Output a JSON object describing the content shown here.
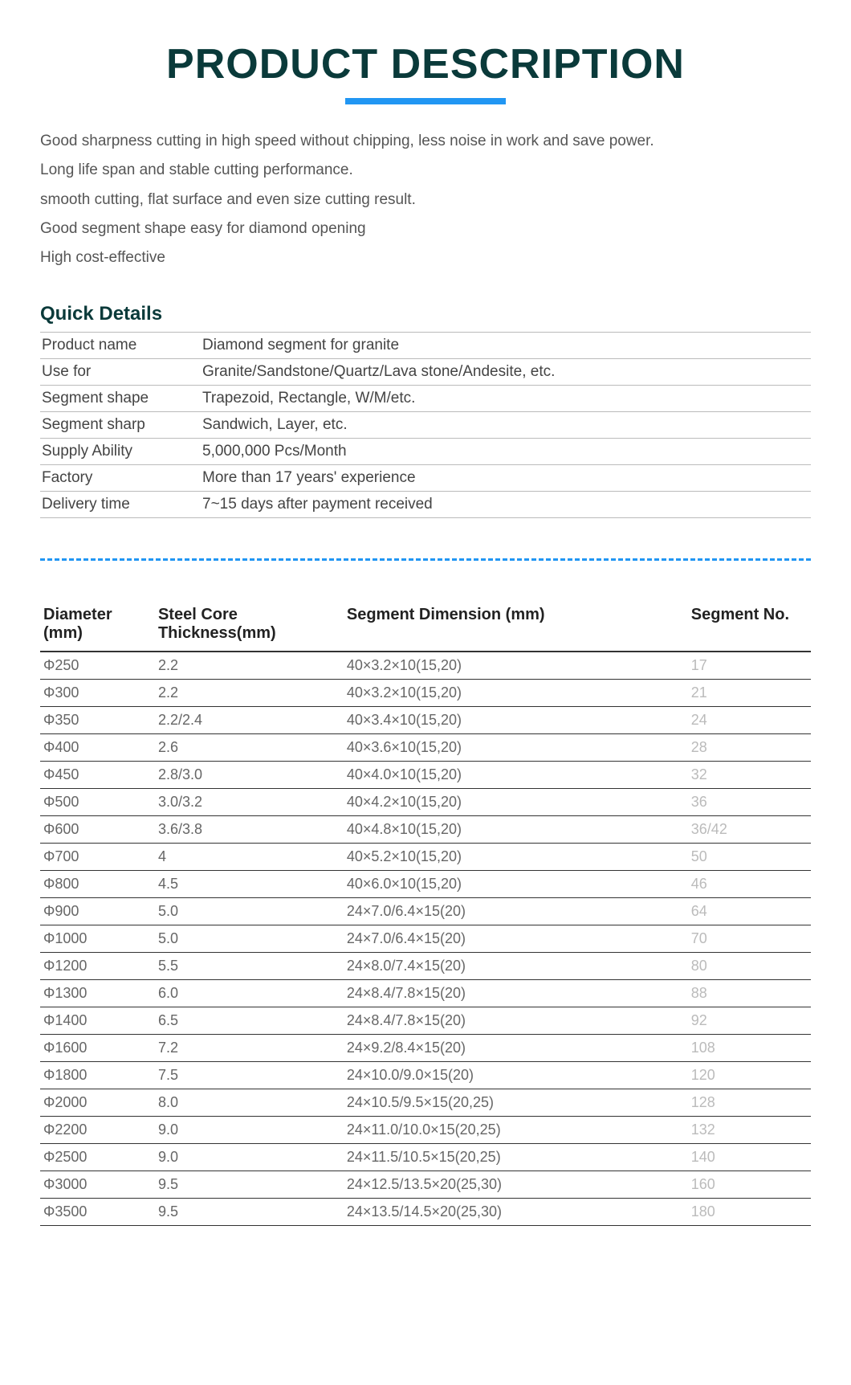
{
  "title": "PRODUCT DESCRIPTION",
  "features": [
    "Good sharpness cutting in high speed without chipping, less noise in work and save power.",
    "Long life span and stable cutting performance.",
    "smooth cutting, flat surface and even size cutting result.",
    "Good segment shape easy for diamond opening",
    "High cost-effective"
  ],
  "quick_details_heading": "Quick Details",
  "quick_details": [
    {
      "key": "Product name",
      "value": "Diamond segment for granite"
    },
    {
      "key": "Use for",
      "value": "Granite/Sandstone/Quartz/Lava stone/Andesite, etc."
    },
    {
      "key": "Segment shape",
      "value": "Trapezoid, Rectangle, W/M/etc."
    },
    {
      "key": "Segment sharp",
      "value": "Sandwich, Layer, etc."
    },
    {
      "key": "Supply Ability",
      "value": "5,000,000 Pcs/Month"
    },
    {
      "key": "Factory",
      "value": "More than 17 years' experience"
    },
    {
      "key": "Delivery time",
      "value": "7~15 days after payment received"
    }
  ],
  "spec_headers": {
    "diameter": "Diameter (mm)",
    "core": "Steel Core Thickness(mm)",
    "dimension": "Segment Dimension  (mm)",
    "segno": "Segment No."
  },
  "spec_rows": [
    {
      "dia": "Φ250",
      "core": "2.2",
      "dim": "40×3.2×10(15,20)",
      "no": "17"
    },
    {
      "dia": "Φ300",
      "core": "2.2",
      "dim": "40×3.2×10(15,20)",
      "no": "21"
    },
    {
      "dia": "Φ350",
      "core": "2.2/2.4",
      "dim": "40×3.4×10(15,20)",
      "no": "24"
    },
    {
      "dia": "Φ400",
      "core": "2.6",
      "dim": "40×3.6×10(15,20)",
      "no": "28"
    },
    {
      "dia": "Φ450",
      "core": "2.8/3.0",
      "dim": "40×4.0×10(15,20)",
      "no": "32"
    },
    {
      "dia": "Φ500",
      "core": "3.0/3.2",
      "dim": "40×4.2×10(15,20)",
      "no": "36"
    },
    {
      "dia": "Φ600",
      "core": "3.6/3.8",
      "dim": "40×4.8×10(15,20)",
      "no": "36/42"
    },
    {
      "dia": "Φ700",
      "core": "4",
      "dim": "40×5.2×10(15,20)",
      "no": "50"
    },
    {
      "dia": "Φ800",
      "core": "4.5",
      "dim": "40×6.0×10(15,20)",
      "no": "46"
    },
    {
      "dia": "Φ900",
      "core": "5.0",
      "dim": "24×7.0/6.4×15(20)",
      "no": "64"
    },
    {
      "dia": "Φ1000",
      "core": "5.0",
      "dim": "24×7.0/6.4×15(20)",
      "no": "70"
    },
    {
      "dia": "Φ1200",
      "core": "5.5",
      "dim": "24×8.0/7.4×15(20)",
      "no": "80"
    },
    {
      "dia": "Φ1300",
      "core": "6.0",
      "dim": "24×8.4/7.8×15(20)",
      "no": "88"
    },
    {
      "dia": "Φ1400",
      "core": "6.5",
      "dim": "24×8.4/7.8×15(20)",
      "no": "92"
    },
    {
      "dia": "Φ1600",
      "core": "7.2",
      "dim": "24×9.2/8.4×15(20)",
      "no": "108"
    },
    {
      "dia": "Φ1800",
      "core": "7.5",
      "dim": "24×10.0/9.0×15(20)",
      "no": "120"
    },
    {
      "dia": "Φ2000",
      "core": "8.0",
      "dim": "24×10.5/9.5×15(20,25)",
      "no": "128"
    },
    {
      "dia": "Φ2200",
      "core": "9.0",
      "dim": "24×11.0/10.0×15(20,25)",
      "no": "132"
    },
    {
      "dia": "Φ2500",
      "core": "9.0",
      "dim": "24×11.5/10.5×15(20,25)",
      "no": "140"
    },
    {
      "dia": "Φ3000",
      "core": "9.5",
      "dim": "24×12.5/13.5×20(25,30)",
      "no": "160"
    },
    {
      "dia": "Φ3500",
      "core": "9.5",
      "dim": "24×13.5/14.5×20(25,30)",
      "no": "180"
    }
  ],
  "colors": {
    "title": "#0a3a3a",
    "underline": "#2196f3",
    "body_text": "#555555",
    "table_border": "#bbbbbb",
    "spec_border": "#333333",
    "segno_text": "#bbbbbb"
  }
}
